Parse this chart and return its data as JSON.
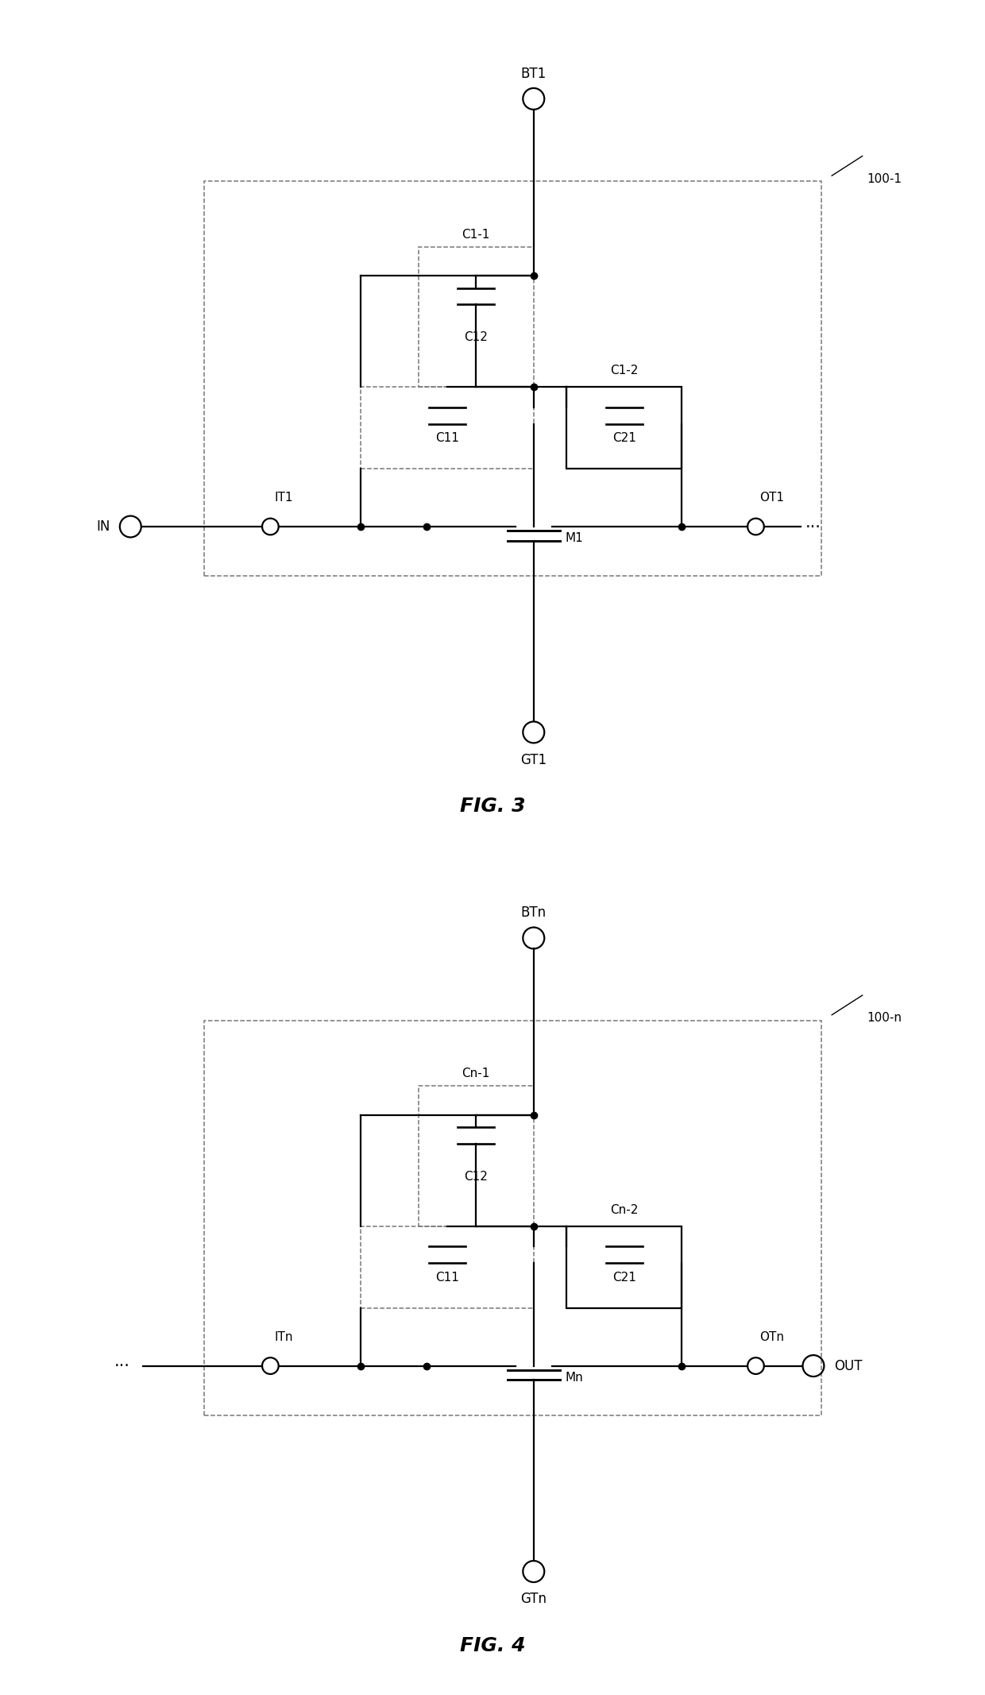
{
  "fig_width": 12.4,
  "fig_height": 21.34,
  "bg_color": "#ffffff",
  "lc": "#000000",
  "dc": "#777777",
  "lw": 1.6,
  "dlw": 1.1,
  "fig3": {
    "title": "FIG. 3",
    "label_100": "100-1",
    "label_BT": "BT1",
    "label_GT": "GT1",
    "label_IO_left": "IN",
    "label_IT": "IT1",
    "label_OT": "OT1",
    "label_M": "M1",
    "label_C11": "C11",
    "label_C12": "C12",
    "label_C21": "C21",
    "label_C1_1": "C1-1",
    "label_C1_2": "C1-2",
    "left_is_in": true
  },
  "fig4": {
    "title": "FIG. 4",
    "label_100": "100-n",
    "label_BT": "BTn",
    "label_GT": "GTn",
    "label_IO_left": "OUT",
    "label_IT": "ITn",
    "label_OT": "OTn",
    "label_M": "Mn",
    "label_C11": "C11",
    "label_C12": "C12",
    "label_C21": "C21",
    "label_C1_1": "Cn-1",
    "label_C1_2": "Cn-2",
    "left_is_in": false
  }
}
